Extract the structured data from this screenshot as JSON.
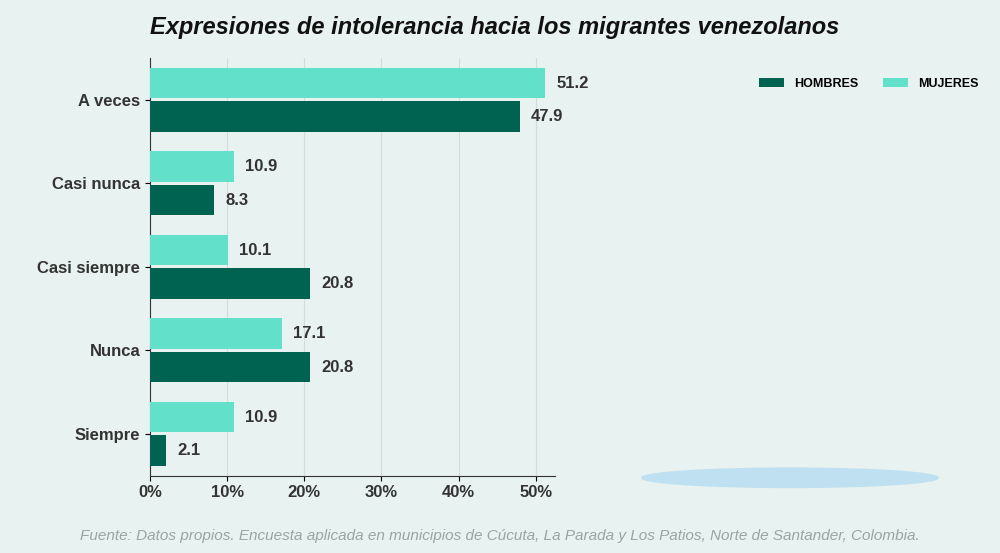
{
  "chart_data": {
    "type": "bar",
    "orientation": "horizontal",
    "title": "Expresiones de intolerancia hacia los migrantes venezolanos",
    "source": "Fuente: Datos propios. Encuesta aplicada en municipios de Cúcuta, La Parada y Los Patios, Norte de Santander, Colombia.",
    "categories": [
      "A veces",
      "Casi nunca",
      "Casi siempre",
      "Nunca",
      "Siempre"
    ],
    "series": [
      {
        "name": "MUJERES",
        "color": "#62e0c9",
        "values": [
          51.2,
          10.9,
          10.1,
          17.1,
          10.9
        ]
      },
      {
        "name": "HOMBRES",
        "color": "#006352",
        "values": [
          47.9,
          8.3,
          20.8,
          20.8,
          2.1
        ]
      }
    ],
    "xlim": [
      0,
      52.5
    ],
    "xticks": [
      {
        "value": 0,
        "label": "0%"
      },
      {
        "value": 10,
        "label": "10%"
      },
      {
        "value": 20,
        "label": "20%"
      },
      {
        "value": 30,
        "label": "30%"
      },
      {
        "value": 40,
        "label": "40%"
      },
      {
        "value": 50,
        "label": "50%"
      }
    ],
    "grid": true,
    "data_labels": true,
    "legend": "upper right"
  }
}
